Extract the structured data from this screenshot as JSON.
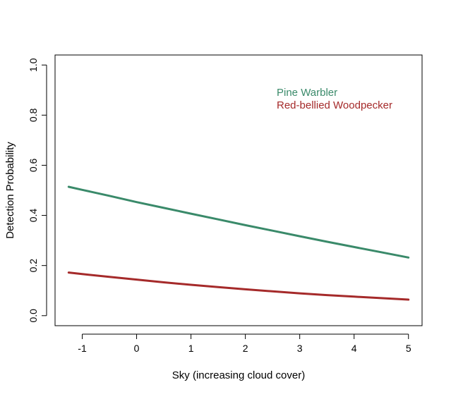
{
  "chart_data": {
    "type": "line",
    "title": "",
    "xlabel": "Sky (increasing cloud cover)",
    "ylabel": "Detection Probability",
    "xlim": [
      -1.5,
      5.25
    ],
    "ylim": [
      -0.04,
      1.04
    ],
    "x_ticks": [
      -1,
      0,
      1,
      2,
      3,
      4,
      5
    ],
    "x_tick_labels": [
      "-1",
      "0",
      "1",
      "2",
      "3",
      "4",
      "5"
    ],
    "y_ticks": [
      0.0,
      0.2,
      0.4,
      0.6,
      0.8,
      1.0
    ],
    "y_tick_labels": [
      "0.0",
      "0.2",
      "0.4",
      "0.6",
      "0.8",
      "1.0"
    ],
    "grid": false,
    "legend_placement": "top-right",
    "series": [
      {
        "name": "Pine Warbler",
        "color": "#3a8a6a",
        "x": [
          -1.25,
          -1,
          -0.5,
          0,
          0.5,
          1,
          1.5,
          2,
          2.5,
          3,
          3.5,
          4,
          4.5,
          5
        ],
        "y": [
          0.514,
          0.502,
          0.478,
          0.453,
          0.43,
          0.407,
          0.384,
          0.361,
          0.339,
          0.317,
          0.295,
          0.274,
          0.253,
          0.232
        ]
      },
      {
        "name": "Red-bellied Woodpecker",
        "color": "#a52a2a",
        "x": [
          -1.25,
          -1,
          -0.5,
          0,
          0.5,
          1,
          1.5,
          2,
          2.5,
          3,
          3.5,
          4,
          4.5,
          5
        ],
        "y": [
          0.172,
          0.166,
          0.155,
          0.144,
          0.133,
          0.123,
          0.114,
          0.105,
          0.097,
          0.089,
          0.082,
          0.076,
          0.07,
          0.064
        ]
      }
    ]
  }
}
